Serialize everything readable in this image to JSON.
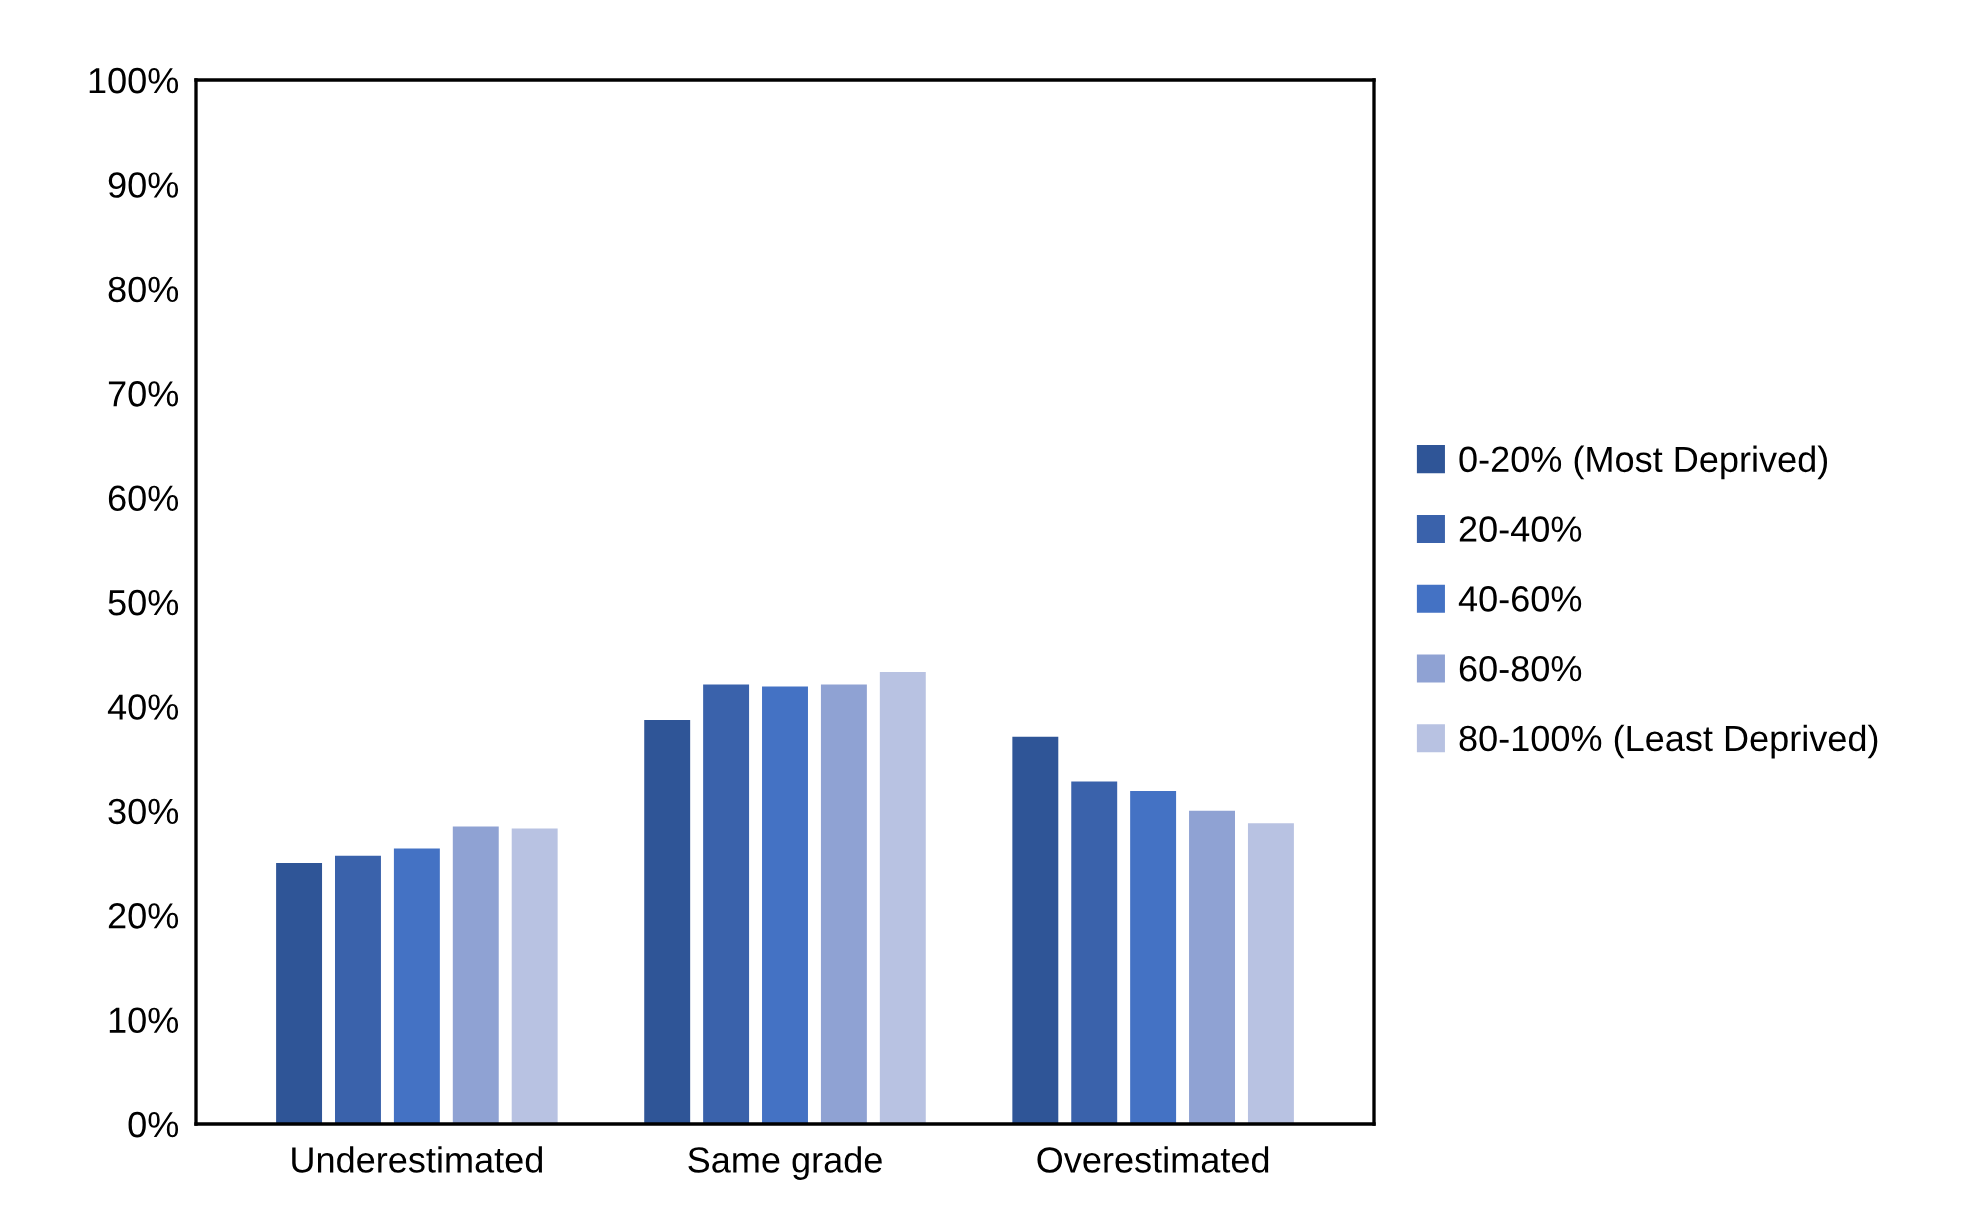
{
  "chart_data": {
    "type": "bar",
    "categories": [
      "Underestimated",
      "Same grade",
      "Overestimated"
    ],
    "series": [
      {
        "name": "0-20% (Most Deprived)",
        "color": "#2f5597",
        "values": [
          25.0,
          38.7,
          37.1
        ]
      },
      {
        "name": "20-40%",
        "color": "#3a62ab",
        "values": [
          25.7,
          42.1,
          32.8
        ]
      },
      {
        "name": "40-60%",
        "color": "#4472c4",
        "values": [
          26.4,
          41.9,
          31.9
        ]
      },
      {
        "name": "60-80%",
        "color": "#8fa2d3",
        "values": [
          28.5,
          42.1,
          30.0
        ]
      },
      {
        "name": "80-100% (Least Deprived)",
        "color": "#b8c2e2",
        "values": [
          28.3,
          43.3,
          28.8
        ]
      }
    ],
    "ylim": [
      0,
      100
    ],
    "yticks": [
      {
        "value": 0,
        "label": "0%"
      },
      {
        "value": 10,
        "label": "10%"
      },
      {
        "value": 20,
        "label": "20%"
      },
      {
        "value": 30,
        "label": "30%"
      },
      {
        "value": 40,
        "label": "40%"
      },
      {
        "value": 50,
        "label": "50%"
      },
      {
        "value": 60,
        "label": "60%"
      },
      {
        "value": 70,
        "label": "70%"
      },
      {
        "value": 80,
        "label": "80%"
      },
      {
        "value": 90,
        "label": "90%"
      },
      {
        "value": 100,
        "label": "100%"
      }
    ],
    "grid": false,
    "legend": "right"
  }
}
